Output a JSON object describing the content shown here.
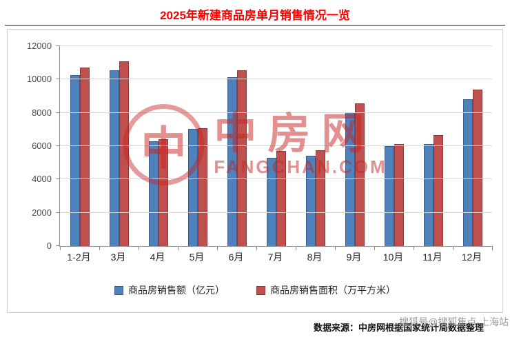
{
  "title": "2025年新建商品房单月销售情况一览",
  "chart_data": {
    "type": "bar",
    "title": "2025年新建商品房单月销售情况一览",
    "categories": [
      "1-2月",
      "3月",
      "4月",
      "5月",
      "6月",
      "7月",
      "8月",
      "9月",
      "10月",
      "11月",
      "12月"
    ],
    "series": [
      {
        "name": "商品房销售额（亿元）",
        "color": "#4F81BD",
        "values": [
          10250,
          10550,
          6290,
          7030,
          10140,
          5300,
          5420,
          8030,
          6000,
          6120,
          8810
        ]
      },
      {
        "name": "商品房销售面积（万平方米）",
        "color": "#C0504D",
        "values": [
          10700,
          11090,
          6400,
          7070,
          10550,
          5710,
          5750,
          8570,
          6120,
          6660,
          9390
        ]
      }
    ],
    "ylim": [
      0,
      12000
    ],
    "yticks": [
      0,
      2000,
      4000,
      6000,
      8000,
      10000,
      12000
    ],
    "grid": "horizontal",
    "legend_position": "bottom"
  },
  "watermark": {
    "logo_char": "中",
    "cn": "中房网",
    "en": "FANGCHAN.COM"
  },
  "footer": {
    "source": "数据来源：中房网根据国家统计局数据整理",
    "overlay": "搜狐号@搜狐焦点·上海站"
  },
  "colors": {
    "title_red": "#FF0000",
    "series_blue": "#4F81BD",
    "series_red": "#C0504D",
    "watermark_red": "#C62222",
    "gridline_gray": "#D9D9D9"
  }
}
